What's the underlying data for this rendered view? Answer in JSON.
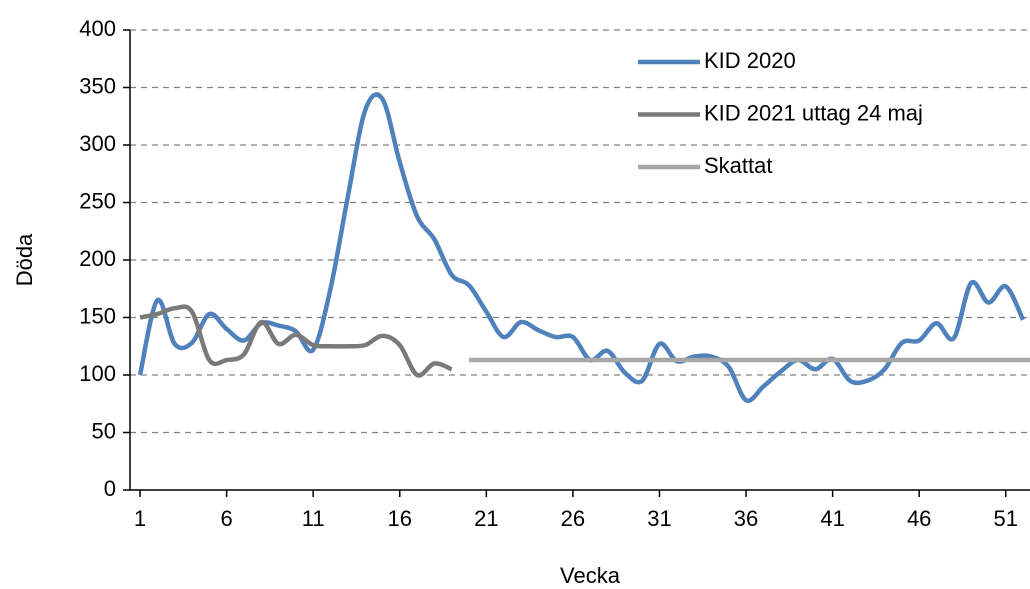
{
  "chart_data": {
    "type": "line",
    "x_label": "Vecka",
    "y_label": "Döda",
    "xlim": [
      0.42,
      52.4
    ],
    "xticks": [
      1,
      6,
      11,
      16,
      21,
      26,
      31,
      36,
      41,
      46,
      51
    ],
    "ylim": [
      0,
      400
    ],
    "yticks": [
      0,
      50,
      100,
      150,
      200,
      250,
      300,
      350,
      400
    ],
    "grid": true,
    "legend": "upper right",
    "series": [
      {
        "name": "KID 2020",
        "color": "#4f81bd",
        "x": [
          1,
          2,
          3,
          4,
          5,
          6,
          7,
          8,
          9,
          10,
          11,
          12,
          13,
          14,
          15,
          16,
          17,
          18,
          19,
          20,
          21,
          22,
          23,
          24,
          25,
          26,
          27,
          28,
          29,
          30,
          31,
          32,
          33,
          34,
          35,
          36,
          37,
          38,
          39,
          40,
          41,
          42,
          43,
          44,
          45,
          46,
          47,
          48,
          49,
          50,
          51,
          52
        ],
        "values": [
          100,
          165,
          127,
          128,
          153,
          140,
          130,
          145,
          143,
          138,
          122,
          175,
          255,
          330,
          340,
          285,
          238,
          218,
          187,
          178,
          155,
          133,
          146,
          139,
          133,
          133,
          113,
          121,
          102,
          95,
          127,
          112,
          116,
          116,
          107,
          78,
          90,
          103,
          113,
          105,
          114,
          95,
          95,
          105,
          128,
          130,
          145,
          132,
          180,
          163,
          177,
          148
        ]
      },
      {
        "name": "KID 2021 uttag 24 maj",
        "color": "#7a7a7a",
        "x": [
          1,
          2,
          3,
          4,
          5,
          6,
          7,
          8,
          9,
          10,
          11,
          12,
          13,
          14,
          15,
          16,
          17,
          18,
          19
        ],
        "values": [
          150,
          153,
          158,
          155,
          113,
          113,
          118,
          146,
          127,
          135,
          126,
          125,
          125,
          126,
          134,
          126,
          100,
          110,
          105
        ]
      },
      {
        "name": "Skattat",
        "color": "#a6a6a6",
        "x": [
          20,
          52.4
        ],
        "values": [
          113,
          113
        ]
      }
    ]
  }
}
